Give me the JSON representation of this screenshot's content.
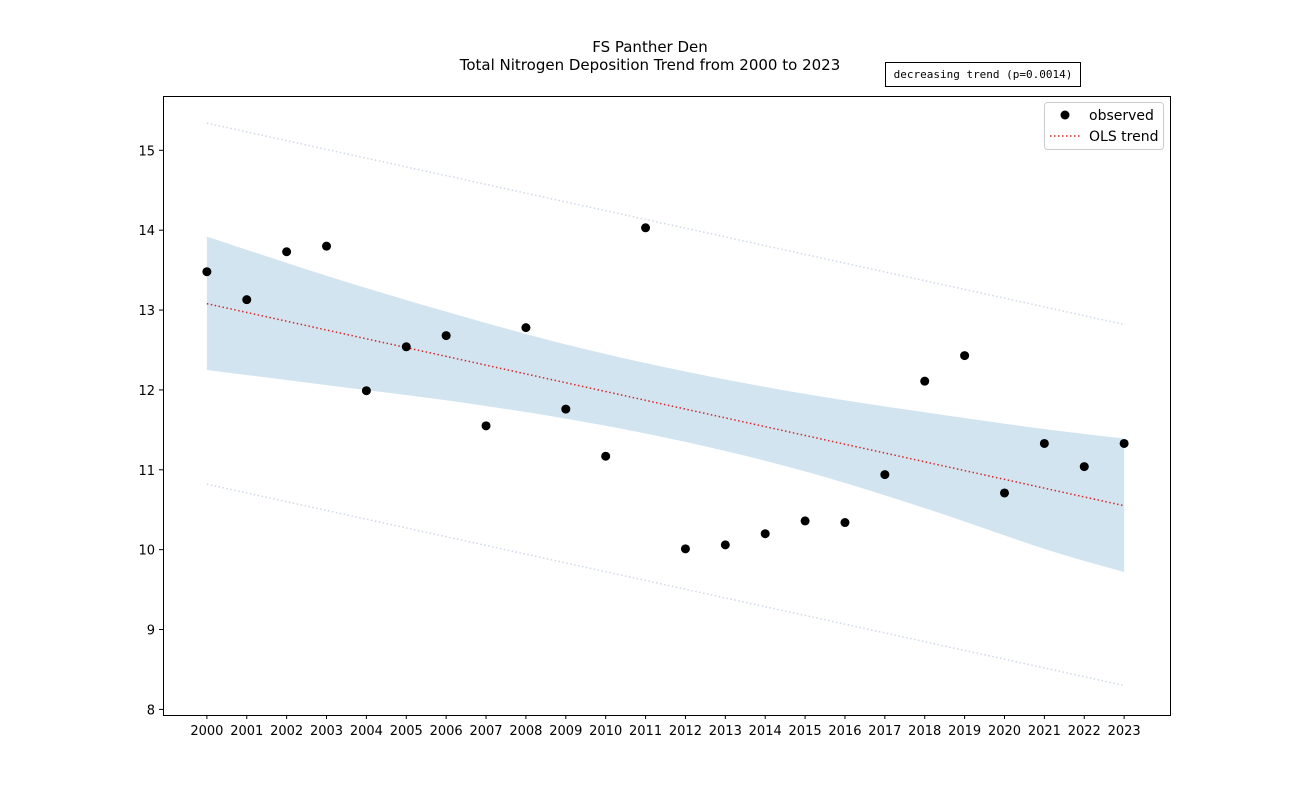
{
  "chart_data": {
    "type": "scatter",
    "title": "FS Panther Den",
    "subtitle": "Total Nitrogen Deposition Trend from 2000 to 2023",
    "xlabel": "",
    "ylabel": "",
    "x": [
      2000,
      2001,
      2002,
      2003,
      2004,
      2005,
      2006,
      2007,
      2008,
      2009,
      2010,
      2011,
      2012,
      2013,
      2014,
      2015,
      2016,
      2017,
      2018,
      2019,
      2020,
      2021,
      2022,
      2023
    ],
    "series": [
      {
        "name": "observed",
        "kind": "points",
        "color": "#000000",
        "values": [
          13.48,
          13.13,
          13.73,
          13.8,
          11.99,
          12.54,
          12.68,
          11.55,
          12.78,
          11.76,
          11.17,
          14.03,
          10.01,
          10.06,
          10.2,
          10.36,
          10.34,
          10.94,
          12.11,
          12.43,
          10.71,
          11.33,
          11.04,
          11.33
        ]
      },
      {
        "name": "OLS trend",
        "kind": "dotted-line",
        "color": "#d62728",
        "start": [
          2000,
          13.08
        ],
        "end": [
          2023,
          10.55
        ]
      }
    ],
    "confidence_band": {
      "color": "#1f77b4",
      "opacity": 0.2,
      "x": [
        2000,
        2003,
        2006,
        2009,
        2012,
        2015,
        2018,
        2021,
        2023
      ],
      "upper": [
        13.92,
        13.43,
        12.98,
        12.57,
        12.23,
        11.95,
        11.72,
        11.51,
        11.39
      ],
      "lower": [
        12.25,
        12.06,
        11.87,
        11.64,
        11.35,
        10.98,
        10.52,
        10.01,
        9.72
      ]
    },
    "prediction_band": {
      "color": "#d0d8e8",
      "upper": [
        [
          2000,
          15.34
        ],
        [
          2023,
          12.82
        ]
      ],
      "lower": [
        [
          2000,
          10.82
        ],
        [
          2023,
          8.3
        ]
      ]
    },
    "xlim": [
      1998.9,
      2024.15
    ],
    "ylim": [
      7.93,
      15.68
    ],
    "yticks": [
      8,
      9,
      10,
      11,
      12,
      13,
      14,
      15
    ],
    "xticks": [
      2000,
      2001,
      2002,
      2003,
      2004,
      2005,
      2006,
      2007,
      2008,
      2009,
      2010,
      2011,
      2012,
      2013,
      2014,
      2015,
      2016,
      2017,
      2018,
      2019,
      2020,
      2021,
      2022,
      2023
    ],
    "legend": {
      "position": "top-right",
      "entries": [
        "observed",
        "OLS trend"
      ]
    },
    "annotation": "decreasing trend (p=0.0014)",
    "grid": false
  }
}
